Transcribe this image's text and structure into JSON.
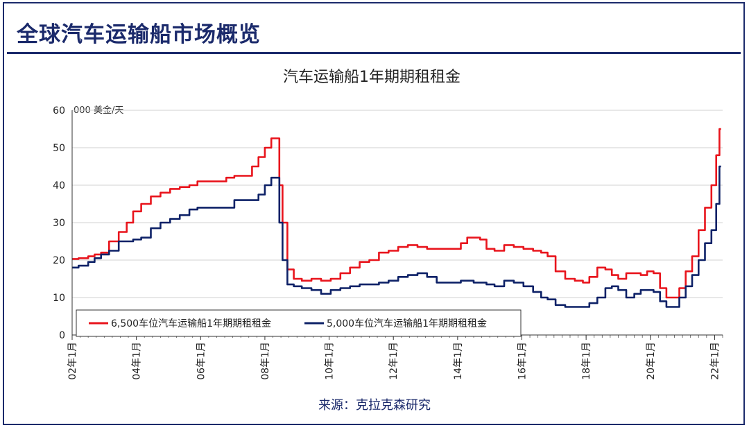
{
  "page": {
    "title": "全球汽车运输船市场概览",
    "source": "来源：克拉克森研究"
  },
  "colors": {
    "frame": "#1b2a6b",
    "series_6500": "#e8141c",
    "series_5000": "#0d2167",
    "grid": "#d0d0d0"
  },
  "chart_data": {
    "type": "line",
    "title": "汽车运输船1年期期租租金",
    "ylabel": "000 美金/天",
    "ylim": [
      0,
      60
    ],
    "yticks": [
      0,
      10,
      20,
      30,
      40,
      50,
      60
    ],
    "xlim": [
      2002.0,
      2022.25
    ],
    "xtick_values": [
      2002,
      2004,
      2006,
      2008,
      2010,
      2012,
      2014,
      2016,
      2018,
      2020,
      2022
    ],
    "xtick_labels": [
      "02年1月",
      "04年1月",
      "06年1月",
      "08年1月",
      "10年1月",
      "12年1月",
      "14年1月",
      "16年1月",
      "18年1月",
      "20年1月",
      "22年1月"
    ],
    "grid": true,
    "legend_position": "bottom-left",
    "series": [
      {
        "name": "6,500车位汽车运输船1年期期租租金",
        "color": "#e8141c",
        "x": [
          2002.0,
          2002.4,
          2002.6,
          2002.8,
          2003.0,
          2003.3,
          2003.6,
          2003.8,
          2004.0,
          2004.3,
          2004.6,
          2004.9,
          2005.2,
          2005.5,
          2005.8,
          2006.0,
          2006.5,
          2006.7,
          2006.9,
          2007.2,
          2007.5,
          2007.7,
          2007.9,
          2008.1,
          2008.3,
          2008.4,
          2008.5,
          2008.6,
          2008.8,
          2009.0,
          2009.3,
          2009.6,
          2009.9,
          2010.2,
          2010.5,
          2010.8,
          2011.1,
          2011.4,
          2011.7,
          2012.0,
          2012.3,
          2012.6,
          2012.9,
          2013.2,
          2013.5,
          2013.8,
          2014.0,
          2014.2,
          2014.4,
          2014.6,
          2014.8,
          2015.0,
          2015.3,
          2015.6,
          2015.9,
          2016.2,
          2016.5,
          2016.7,
          2016.9,
          2017.2,
          2017.5,
          2017.8,
          2018.0,
          2018.2,
          2018.5,
          2018.7,
          2018.9,
          2019.1,
          2019.4,
          2019.6,
          2019.8,
          2020.0,
          2020.2,
          2020.4,
          2020.6,
          2020.8,
          2021.0,
          2021.2,
          2021.4,
          2021.6,
          2021.8,
          2022.0,
          2022.1,
          2022.2
        ],
        "values": [
          20.3,
          20.5,
          21.0,
          21.5,
          22.0,
          25.0,
          27.5,
          30.0,
          33.0,
          35.0,
          37.0,
          38.0,
          39.0,
          39.5,
          40.0,
          41.0,
          41.0,
          41.0,
          42.0,
          42.5,
          42.5,
          45.0,
          47.5,
          50.0,
          52.5,
          52.5,
          40.0,
          30.0,
          17.5,
          15.0,
          14.5,
          15.0,
          14.5,
          15.0,
          16.5,
          18.0,
          19.5,
          20.0,
          22.0,
          22.5,
          23.5,
          24.0,
          23.5,
          23.0,
          23.0,
          23.0,
          23.0,
          24.5,
          26.0,
          26.0,
          25.5,
          23.0,
          22.5,
          24.0,
          23.5,
          23.0,
          22.5,
          22.0,
          21.0,
          17.0,
          15.0,
          14.5,
          14.0,
          15.5,
          18.0,
          17.5,
          16.0,
          15.0,
          16.5,
          16.5,
          16.0,
          17.0,
          16.5,
          12.5,
          10.0,
          10.0,
          12.5,
          17.0,
          21.0,
          28.0,
          34.0,
          40.0,
          48.0,
          55.0
        ]
      },
      {
        "name": "5,000车位汽车运输船1年期期租租金",
        "color": "#0d2167",
        "x": [
          2002.0,
          2002.4,
          2002.6,
          2002.8,
          2003.0,
          2003.3,
          2003.6,
          2003.8,
          2004.0,
          2004.3,
          2004.6,
          2004.9,
          2005.2,
          2005.5,
          2005.8,
          2006.0,
          2006.5,
          2006.7,
          2006.9,
          2007.2,
          2007.5,
          2007.7,
          2007.9,
          2008.1,
          2008.3,
          2008.4,
          2008.5,
          2008.6,
          2008.8,
          2009.0,
          2009.3,
          2009.6,
          2009.9,
          2010.2,
          2010.5,
          2010.8,
          2011.1,
          2011.4,
          2011.7,
          2012.0,
          2012.3,
          2012.6,
          2012.9,
          2013.2,
          2013.5,
          2013.8,
          2014.0,
          2014.2,
          2014.4,
          2014.6,
          2014.8,
          2015.0,
          2015.3,
          2015.6,
          2015.9,
          2016.2,
          2016.5,
          2016.7,
          2016.9,
          2017.2,
          2017.5,
          2017.8,
          2018.0,
          2018.2,
          2018.5,
          2018.7,
          2018.9,
          2019.1,
          2019.4,
          2019.6,
          2019.8,
          2020.0,
          2020.2,
          2020.4,
          2020.6,
          2020.8,
          2021.0,
          2021.2,
          2021.4,
          2021.6,
          2021.8,
          2022.0,
          2022.1,
          2022.2
        ],
        "values": [
          18.0,
          18.5,
          19.5,
          20.5,
          21.5,
          22.5,
          25.0,
          25.0,
          25.5,
          26.0,
          28.5,
          30.0,
          31.0,
          32.0,
          33.5,
          34.0,
          34.0,
          34.0,
          34.0,
          36.0,
          36.0,
          36.0,
          37.5,
          40.0,
          42.0,
          42.0,
          30.0,
          20.0,
          13.5,
          13.0,
          12.5,
          12.0,
          11.0,
          12.0,
          12.5,
          13.0,
          13.5,
          13.5,
          14.0,
          14.5,
          15.5,
          16.0,
          16.5,
          15.5,
          14.0,
          14.0,
          14.0,
          14.5,
          14.5,
          14.0,
          14.0,
          13.5,
          13.0,
          14.5,
          14.0,
          13.0,
          11.5,
          10.0,
          9.5,
          8.0,
          7.5,
          7.5,
          7.5,
          8.5,
          10.0,
          12.5,
          13.0,
          12.0,
          10.0,
          11.0,
          12.0,
          12.0,
          11.5,
          9.0,
          7.5,
          7.5,
          10.0,
          13.0,
          16.0,
          20.0,
          24.5,
          28.0,
          35.0,
          45.0
        ]
      }
    ]
  }
}
